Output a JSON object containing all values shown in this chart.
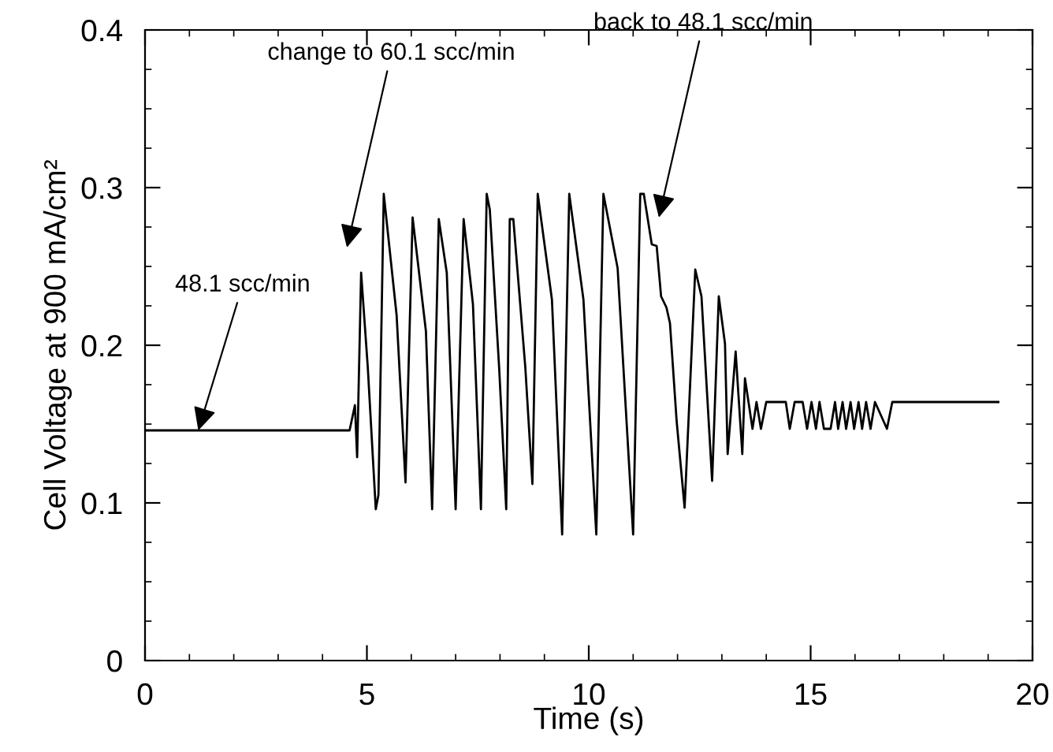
{
  "chart_data": {
    "type": "line",
    "xlabel": "Time (s)",
    "ylabel": "Cell Voltage at 900 mA/cm²",
    "x": [
      0,
      4.61,
      4.73,
      4.78,
      4.87,
      5.02,
      5.2,
      5.26,
      5.38,
      5.67,
      5.87,
      6.03,
      6.33,
      6.47,
      6.62,
      6.8,
      7.0,
      7.18,
      7.39,
      7.57,
      7.7,
      7.77,
      7.98,
      8.14,
      8.22,
      8.3,
      8.57,
      8.73,
      8.85,
      9.17,
      9.4,
      9.56,
      9.88,
      10.17,
      10.33,
      10.65,
      11.0,
      11.16,
      11.24,
      11.42,
      11.53,
      11.63,
      11.75,
      11.83,
      11.98,
      12.16,
      12.4,
      12.54,
      12.78,
      12.93,
      13.07,
      13.13,
      13.31,
      13.46,
      13.52,
      13.69,
      13.78,
      13.88,
      14.0,
      14.44,
      14.53,
      14.64,
      14.82,
      14.92,
      15.02,
      15.12,
      15.2,
      15.3,
      15.45,
      15.55,
      15.62,
      15.72,
      15.8,
      15.9,
      15.98,
      16.08,
      16.16,
      16.25,
      16.35,
      16.45,
      16.72,
      16.84,
      19.23
    ],
    "series": [
      {
        "color": "#000000",
        "values": [
          0.146,
          0.146,
          0.162,
          0.129,
          0.246,
          0.186,
          0.096,
          0.105,
          0.296,
          0.219,
          0.113,
          0.281,
          0.209,
          0.096,
          0.28,
          0.246,
          0.096,
          0.28,
          0.226,
          0.096,
          0.296,
          0.286,
          0.186,
          0.096,
          0.28,
          0.28,
          0.186,
          0.112,
          0.296,
          0.229,
          0.08,
          0.296,
          0.229,
          0.08,
          0.296,
          0.249,
          0.08,
          0.296,
          0.296,
          0.264,
          0.263,
          0.231,
          0.224,
          0.214,
          0.152,
          0.097,
          0.248,
          0.231,
          0.114,
          0.231,
          0.201,
          0.131,
          0.196,
          0.131,
          0.179,
          0.147,
          0.164,
          0.147,
          0.164,
          0.164,
          0.147,
          0.164,
          0.164,
          0.147,
          0.164,
          0.147,
          0.164,
          0.147,
          0.147,
          0.164,
          0.147,
          0.164,
          0.147,
          0.164,
          0.147,
          0.164,
          0.147,
          0.164,
          0.147,
          0.164,
          0.147,
          0.164,
          0.164
        ]
      }
    ],
    "xlim": [
      0,
      20
    ],
    "xticks": [
      0,
      5,
      10,
      15,
      20
    ],
    "ylim": [
      0,
      0.4
    ],
    "yticks": [
      0,
      0.1,
      0.2,
      0.3,
      0.4
    ],
    "grid": false,
    "marker": "none",
    "line_style": "solid",
    "annotations": [
      {
        "text": "48.1 scc/min",
        "x": 1.2,
        "y": 0.146
      },
      "change to 60.1 scc/min",
      "back to 48.1 scc/min"
    ]
  }
}
